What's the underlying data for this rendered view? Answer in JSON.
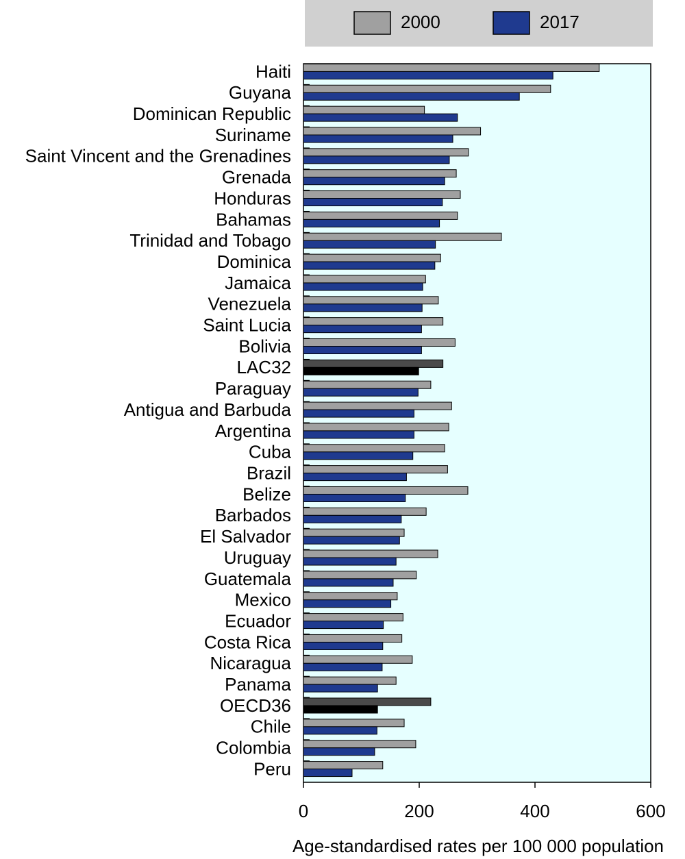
{
  "chart_data": {
    "type": "hbar",
    "x_label": "Age-standardised rates per 100 000 population",
    "categories": [
      "Haiti",
      "Guyana",
      "Dominican Republic",
      "Suriname",
      "Saint Vincent and the Grenadines",
      "Grenada",
      "Honduras",
      "Bahamas",
      "Trinidad and Tobago",
      "Dominica",
      "Jamaica",
      "Venezuela",
      "Saint Lucia",
      "Bolivia",
      "LAC32",
      "Paraguay",
      "Antigua and Barbuda",
      "Argentina",
      "Cuba",
      "Brazil",
      "Belize",
      "Barbados",
      "El Salvador",
      "Uruguay",
      "Guatemala",
      "Mexico",
      "Ecuador",
      "Costa Rica",
      "Nicaragua",
      "Panama",
      "OECD36",
      "Chile",
      "Colombia",
      "Peru"
    ],
    "series": [
      {
        "name": "2000",
        "color": "#a0a0a0",
        "colors": [
          "#a0a0a0",
          "#a0a0a0",
          "#a0a0a0",
          "#a0a0a0",
          "#a0a0a0",
          "#a0a0a0",
          "#a0a0a0",
          "#a0a0a0",
          "#a0a0a0",
          "#a0a0a0",
          "#a0a0a0",
          "#a0a0a0",
          "#a0a0a0",
          "#a0a0a0",
          "#4a4a4a",
          "#a0a0a0",
          "#a0a0a0",
          "#a0a0a0",
          "#a0a0a0",
          "#a0a0a0",
          "#a0a0a0",
          "#a0a0a0",
          "#a0a0a0",
          "#a0a0a0",
          "#a0a0a0",
          "#a0a0a0",
          "#a0a0a0",
          "#a0a0a0",
          "#a0a0a0",
          "#a0a0a0",
          "#4a4a4a",
          "#a0a0a0",
          "#a0a0a0",
          "#a0a0a0"
        ],
        "values": [
          511,
          427,
          209,
          306,
          285,
          264,
          271,
          266,
          342,
          237,
          211,
          233,
          241,
          262,
          241,
          220,
          256,
          251,
          244,
          249,
          284,
          212,
          174,
          232,
          195,
          162,
          172,
          170,
          188,
          160,
          220,
          174,
          194,
          137
        ]
      },
      {
        "name": "2017",
        "color": "#1f3a8f",
        "colors": [
          "#1f3a8f",
          "#1f3a8f",
          "#1f3a8f",
          "#1f3a8f",
          "#1f3a8f",
          "#1f3a8f",
          "#1f3a8f",
          "#1f3a8f",
          "#1f3a8f",
          "#1f3a8f",
          "#1f3a8f",
          "#1f3a8f",
          "#1f3a8f",
          "#1f3a8f",
          "#000000",
          "#1f3a8f",
          "#1f3a8f",
          "#1f3a8f",
          "#1f3a8f",
          "#1f3a8f",
          "#1f3a8f",
          "#1f3a8f",
          "#1f3a8f",
          "#1f3a8f",
          "#1f3a8f",
          "#1f3a8f",
          "#1f3a8f",
          "#1f3a8f",
          "#1f3a8f",
          "#1f3a8f",
          "#000000",
          "#1f3a8f",
          "#1f3a8f",
          "#1f3a8f"
        ],
        "values": [
          431,
          373,
          266,
          258,
          252,
          244,
          240,
          235,
          228,
          227,
          206,
          205,
          204,
          204,
          199,
          198,
          191,
          191,
          189,
          178,
          176,
          169,
          166,
          160,
          155,
          151,
          138,
          137,
          136,
          128,
          128,
          127,
          123,
          84
        ]
      }
    ],
    "xlim": [
      0,
      600
    ],
    "xticks": [
      0,
      200,
      400,
      600
    ],
    "legend": "top",
    "background": "#e6ffff"
  }
}
